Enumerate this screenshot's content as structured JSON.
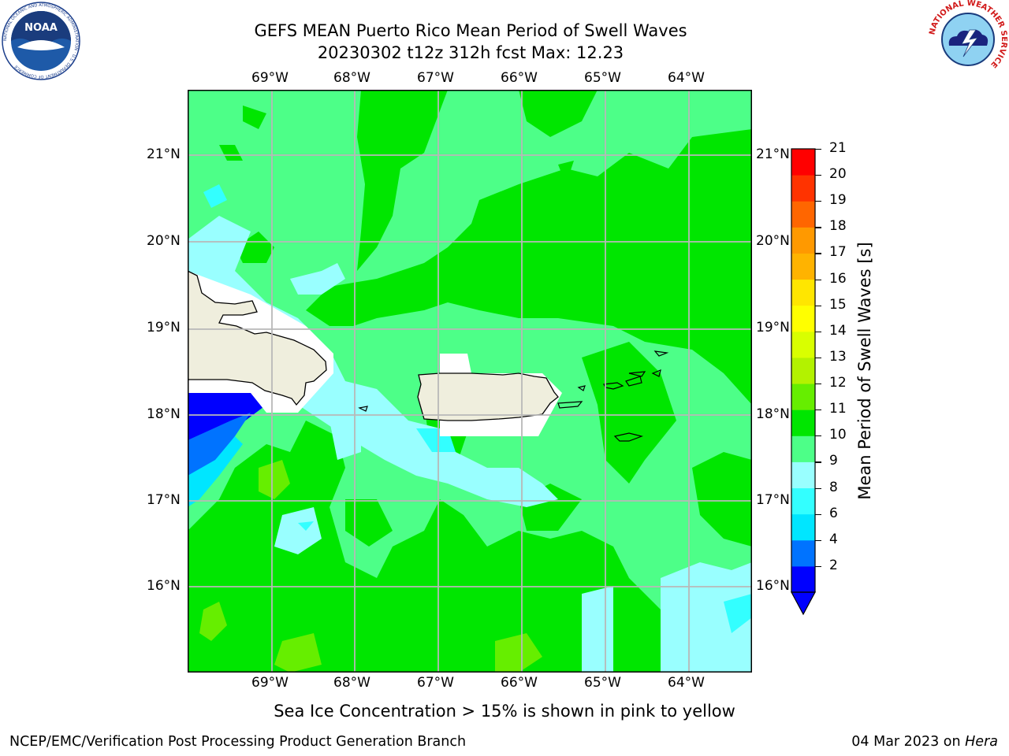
{
  "header": {
    "title_line1": "GEFS MEAN Puerto Rico Mean Period of Swell Waves",
    "title_line2": "20230302 t12z 312h fcst   Max: 12.23"
  },
  "map": {
    "lon_ticks": [
      "69°W",
      "68°W",
      "67°W",
      "66°W",
      "65°W",
      "64°W"
    ],
    "lat_ticks": [
      "21°N",
      "20°N",
      "19°N",
      "18°N",
      "17°N",
      "16°N"
    ]
  },
  "colorbar": {
    "label": "Mean Period of Swell Waves [s]",
    "ticks": [
      "21",
      "20",
      "19",
      "18",
      "17",
      "16",
      "15",
      "14",
      "13",
      "12",
      "11",
      "10",
      "9",
      "8",
      "6",
      "4",
      "2"
    ],
    "colors": [
      "#0000ff",
      "#0073ff",
      "#00e6ff",
      "#33ffff",
      "#99ffff",
      "#4dff88",
      "#00e600",
      "#66ee00",
      "#b3f200",
      "#d9ff00",
      "#ffff00",
      "#ffe600",
      "#ffb300",
      "#ff9900",
      "#ff6600",
      "#ff3300",
      "#ff0000"
    ]
  },
  "note": "Sea Ice Concentration > 15% is shown in pink to yellow",
  "footer": {
    "left": "NCEP/EMC/Verification Post Processing Product Generation Branch",
    "date": "04 Mar 2023 on ",
    "machine": "Hera"
  },
  "logos": {
    "noaa_text": "NOAA",
    "noaa_ring": "NATIONAL OCEANIC AND ATMOSPHERIC ADMINISTRATION · U.S. DEPARTMENT OF COMMERCE",
    "nws_ring": "NATIONAL WEATHER SERVICE"
  }
}
